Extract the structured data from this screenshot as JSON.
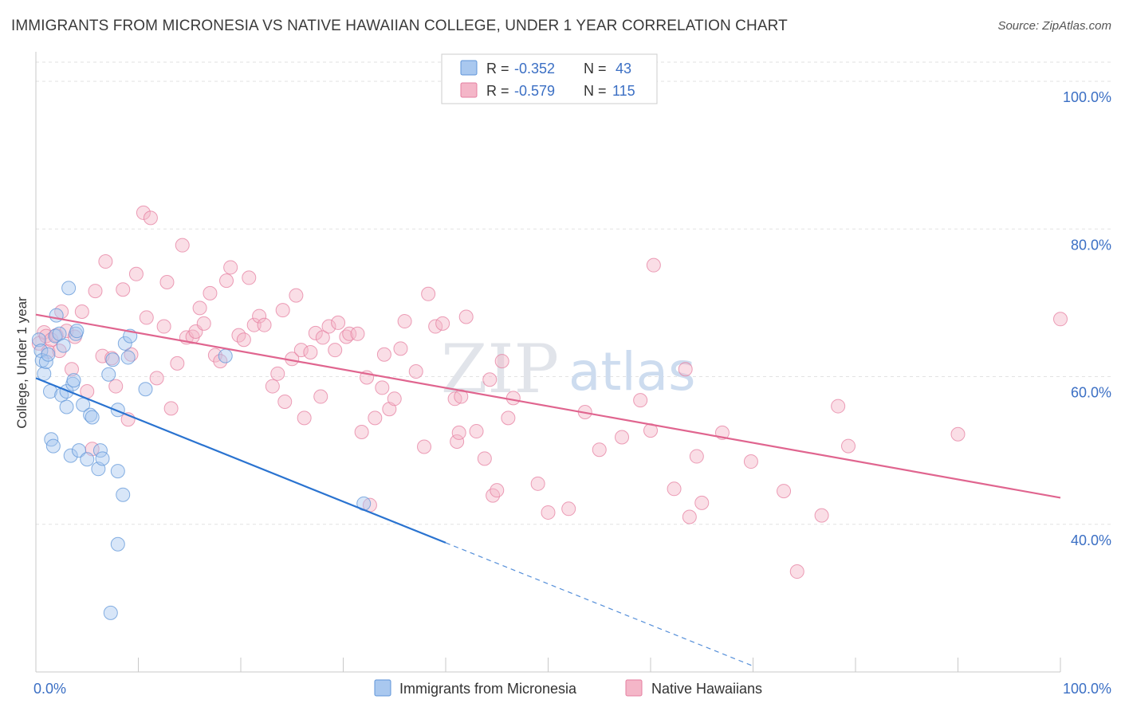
{
  "chart_data": {
    "type": "scatter",
    "title": "IMMIGRANTS FROM MICRONESIA VS NATIVE HAWAIIAN COLLEGE, UNDER 1 YEAR CORRELATION CHART",
    "source": "Source: ZipAtlas.com",
    "xlabel": "",
    "ylabel": "College, Under 1 year",
    "xlim": [
      0,
      100
    ],
    "ylim": [
      20,
      104
    ],
    "x_tick_labels": {
      "left": "0.0%",
      "right": "100.0%"
    },
    "y_ticks": [
      {
        "value": 100,
        "label": "100.0%"
      },
      {
        "value": 80,
        "label": "80.0%"
      },
      {
        "value": 60,
        "label": "60.0%"
      },
      {
        "value": 40,
        "label": "40.0%"
      }
    ],
    "watermark": "ZIPatlas",
    "legend_box": [
      {
        "label_r": "R =",
        "r": "-0.352",
        "label_n": "N =",
        "n": "43",
        "color": "#a9c8ef"
      },
      {
        "label_r": "R =",
        "r": "-0.579",
        "label_n": "N =",
        "n": "115",
        "color": "#f4b6c8"
      }
    ],
    "series": [
      {
        "name": "Immigrants from Micronesia",
        "color": "#a9c8ef",
        "stroke": "#5f95d8",
        "trend_color": "#2a73d0",
        "trend": {
          "x1": 0,
          "y1": 59.8,
          "x2": 40,
          "y2": 37.5,
          "dash_to_x": 70,
          "dash_to_y": 20.8
        },
        "points": [
          [
            0.3,
            65.0
          ],
          [
            0.5,
            63.5
          ],
          [
            0.6,
            62.2
          ],
          [
            0.8,
            60.4
          ],
          [
            1.0,
            62.0
          ],
          [
            1.2,
            63.0
          ],
          [
            1.4,
            58.0
          ],
          [
            1.5,
            51.5
          ],
          [
            1.7,
            50.6
          ],
          [
            1.9,
            65.5
          ],
          [
            2.0,
            68.3
          ],
          [
            2.3,
            65.8
          ],
          [
            2.5,
            57.5
          ],
          [
            2.7,
            64.2
          ],
          [
            3.0,
            58.0
          ],
          [
            3.0,
            55.9
          ],
          [
            3.2,
            72.0
          ],
          [
            3.4,
            49.3
          ],
          [
            3.6,
            59.0
          ],
          [
            3.7,
            59.5
          ],
          [
            3.9,
            65.8
          ],
          [
            4.0,
            66.2
          ],
          [
            4.2,
            50.0
          ],
          [
            4.6,
            56.2
          ],
          [
            5.0,
            48.8
          ],
          [
            5.3,
            54.8
          ],
          [
            5.5,
            54.5
          ],
          [
            6.1,
            47.5
          ],
          [
            6.3,
            50.0
          ],
          [
            6.5,
            48.9
          ],
          [
            7.1,
            60.3
          ],
          [
            7.5,
            62.3
          ],
          [
            7.3,
            28.0
          ],
          [
            8.0,
            47.2
          ],
          [
            8.0,
            55.5
          ],
          [
            8.5,
            44.0
          ],
          [
            8.7,
            64.5
          ],
          [
            9.0,
            62.6
          ],
          [
            9.2,
            65.5
          ],
          [
            10.7,
            58.3
          ],
          [
            8.0,
            37.3
          ],
          [
            18.5,
            62.8
          ],
          [
            32.0,
            42.8
          ]
        ]
      },
      {
        "name": "Native Hawaiians",
        "color": "#f4b6c8",
        "stroke": "#e57fa0",
        "trend_color": "#e0658f",
        "trend": {
          "x1": 0,
          "y1": 68.4,
          "x2": 100,
          "y2": 43.6
        },
        "points": [
          [
            0.3,
            64.5
          ],
          [
            0.8,
            66.0
          ],
          [
            1.0,
            65.5
          ],
          [
            1.2,
            63.4
          ],
          [
            1.5,
            65.0
          ],
          [
            2.0,
            65.6
          ],
          [
            2.3,
            63.5
          ],
          [
            2.5,
            68.8
          ],
          [
            3.0,
            66.2
          ],
          [
            3.5,
            61.0
          ],
          [
            3.8,
            65.4
          ],
          [
            4.5,
            68.8
          ],
          [
            5.0,
            58.0
          ],
          [
            5.5,
            50.2
          ],
          [
            5.8,
            71.6
          ],
          [
            6.5,
            62.8
          ],
          [
            6.8,
            75.6
          ],
          [
            7.4,
            62.5
          ],
          [
            7.8,
            58.7
          ],
          [
            8.5,
            71.8
          ],
          [
            9.0,
            54.2
          ],
          [
            9.3,
            63.0
          ],
          [
            9.8,
            73.9
          ],
          [
            10.5,
            82.2
          ],
          [
            10.8,
            68.0
          ],
          [
            11.2,
            81.5
          ],
          [
            11.8,
            59.8
          ],
          [
            12.5,
            66.8
          ],
          [
            12.8,
            72.8
          ],
          [
            13.2,
            55.7
          ],
          [
            13.8,
            61.8
          ],
          [
            14.3,
            77.8
          ],
          [
            14.7,
            65.3
          ],
          [
            15.3,
            65.4
          ],
          [
            15.6,
            66.1
          ],
          [
            16.0,
            69.3
          ],
          [
            16.4,
            67.2
          ],
          [
            17.0,
            71.3
          ],
          [
            17.5,
            62.9
          ],
          [
            18.0,
            62.1
          ],
          [
            18.6,
            73.0
          ],
          [
            19.0,
            74.8
          ],
          [
            19.8,
            65.6
          ],
          [
            20.3,
            65.0
          ],
          [
            20.8,
            73.4
          ],
          [
            21.3,
            67.0
          ],
          [
            21.8,
            68.2
          ],
          [
            22.3,
            67.0
          ],
          [
            23.1,
            58.7
          ],
          [
            23.6,
            60.4
          ],
          [
            24.1,
            69.0
          ],
          [
            24.3,
            56.6
          ],
          [
            25.0,
            62.4
          ],
          [
            25.4,
            71.0
          ],
          [
            25.9,
            63.6
          ],
          [
            26.2,
            54.4
          ],
          [
            26.8,
            63.3
          ],
          [
            27.3,
            65.9
          ],
          [
            27.8,
            57.3
          ],
          [
            28.0,
            65.3
          ],
          [
            28.6,
            66.8
          ],
          [
            29.2,
            63.6
          ],
          [
            29.5,
            67.3
          ],
          [
            30.3,
            65.4
          ],
          [
            30.6,
            65.8
          ],
          [
            31.4,
            65.8
          ],
          [
            31.8,
            52.5
          ],
          [
            32.3,
            59.9
          ],
          [
            32.6,
            42.6
          ],
          [
            33.1,
            54.4
          ],
          [
            33.8,
            58.5
          ],
          [
            34.0,
            63.0
          ],
          [
            34.5,
            55.6
          ],
          [
            35.0,
            57.0
          ],
          [
            35.6,
            63.8
          ],
          [
            36.0,
            67.5
          ],
          [
            37.1,
            60.7
          ],
          [
            37.9,
            50.5
          ],
          [
            38.3,
            71.2
          ],
          [
            39.0,
            66.8
          ],
          [
            39.7,
            67.2
          ],
          [
            40.9,
            57.0
          ],
          [
            41.1,
            51.2
          ],
          [
            41.3,
            52.4
          ],
          [
            41.5,
            57.3
          ],
          [
            42.0,
            68.1
          ],
          [
            43.0,
            52.6
          ],
          [
            43.8,
            48.9
          ],
          [
            44.3,
            59.6
          ],
          [
            44.6,
            43.9
          ],
          [
            45.0,
            44.6
          ],
          [
            45.5,
            62.1
          ],
          [
            46.1,
            54.4
          ],
          [
            46.6,
            57.1
          ],
          [
            49.0,
            45.5
          ],
          [
            50.0,
            41.6
          ],
          [
            52.0,
            42.1
          ],
          [
            53.6,
            55.2
          ],
          [
            55.0,
            50.1
          ],
          [
            57.2,
            51.8
          ],
          [
            59.0,
            56.8
          ],
          [
            60.0,
            52.7
          ],
          [
            60.3,
            75.1
          ],
          [
            62.3,
            44.8
          ],
          [
            63.4,
            61.0
          ],
          [
            63.8,
            41.0
          ],
          [
            64.5,
            49.2
          ],
          [
            65.0,
            42.9
          ],
          [
            67.0,
            52.4
          ],
          [
            69.8,
            48.5
          ],
          [
            73.0,
            44.5
          ],
          [
            74.3,
            33.6
          ],
          [
            76.7,
            41.2
          ],
          [
            78.3,
            56.0
          ],
          [
            79.3,
            50.6
          ],
          [
            90.0,
            52.2
          ],
          [
            100.0,
            67.8
          ]
        ]
      }
    ],
    "legend_bottom": [
      "Immigrants from Micronesia",
      "Native Hawaiians"
    ]
  }
}
